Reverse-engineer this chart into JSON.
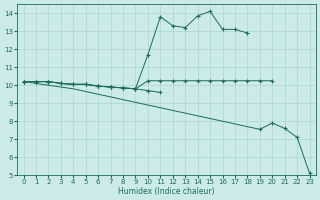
{
  "xlabel": "Humidex (Indice chaleur)",
  "x_values": [
    0,
    1,
    2,
    3,
    4,
    5,
    6,
    7,
    8,
    9,
    10,
    11,
    12,
    13,
    14,
    15,
    16,
    17,
    18,
    19,
    20,
    21,
    22,
    23
  ],
  "line_upper_x": [
    0,
    1,
    2,
    3,
    4,
    5,
    6,
    7,
    8,
    9,
    10,
    11,
    12,
    13,
    14,
    15,
    16,
    17,
    18
  ],
  "line_upper_y": [
    10.2,
    10.2,
    10.2,
    10.1,
    10.05,
    10.05,
    9.95,
    9.9,
    9.85,
    9.8,
    11.7,
    13.8,
    13.3,
    13.2,
    13.85,
    14.1,
    13.1,
    13.1,
    12.9
  ],
  "line_flat_x": [
    0,
    1,
    2,
    3,
    4,
    5,
    6,
    7,
    8,
    9,
    10,
    11,
    12,
    13,
    14,
    15,
    16,
    17,
    18,
    19,
    20
  ],
  "line_flat_y": [
    10.2,
    10.2,
    10.2,
    10.1,
    10.05,
    10.05,
    9.95,
    9.9,
    9.85,
    9.8,
    10.25,
    10.25,
    10.25,
    10.25,
    10.25,
    10.25,
    10.25,
    10.25,
    10.25,
    10.25,
    10.25
  ],
  "line_mid_x": [
    0,
    1,
    2,
    3,
    4,
    5,
    6,
    7,
    8,
    9,
    10,
    11
  ],
  "line_mid_y": [
    10.2,
    10.2,
    10.2,
    10.1,
    10.05,
    10.05,
    9.95,
    9.9,
    9.85,
    9.8,
    9.7,
    9.6
  ],
  "line_diag_x": [
    0,
    1,
    2,
    3,
    4,
    5,
    6,
    7,
    8,
    9,
    10,
    11,
    12,
    13,
    14,
    15,
    16,
    17,
    18,
    19,
    20,
    21,
    22,
    23
  ],
  "line_diag_y": [
    10.2,
    10.1,
    10.0,
    9.9,
    9.8,
    9.65,
    9.5,
    9.35,
    9.2,
    9.05,
    8.9,
    8.75,
    8.6,
    8.45,
    8.3,
    8.15,
    8.0,
    7.85,
    7.7,
    7.55,
    7.9,
    7.6,
    7.1,
    5.1
  ],
  "bg_color": "#cceaea",
  "line_color": "#1a6b5a",
  "grid_color": "#aad4d4",
  "ylim": [
    5,
    14.5
  ],
  "xlim": [
    -0.5,
    23.5
  ],
  "yticks": [
    5,
    6,
    7,
    8,
    9,
    10,
    11,
    12,
    13,
    14
  ],
  "xticks": [
    0,
    1,
    2,
    3,
    4,
    5,
    6,
    7,
    8,
    9,
    10,
    11,
    12,
    13,
    14,
    15,
    16,
    17,
    18,
    19,
    20,
    21,
    22,
    23
  ]
}
